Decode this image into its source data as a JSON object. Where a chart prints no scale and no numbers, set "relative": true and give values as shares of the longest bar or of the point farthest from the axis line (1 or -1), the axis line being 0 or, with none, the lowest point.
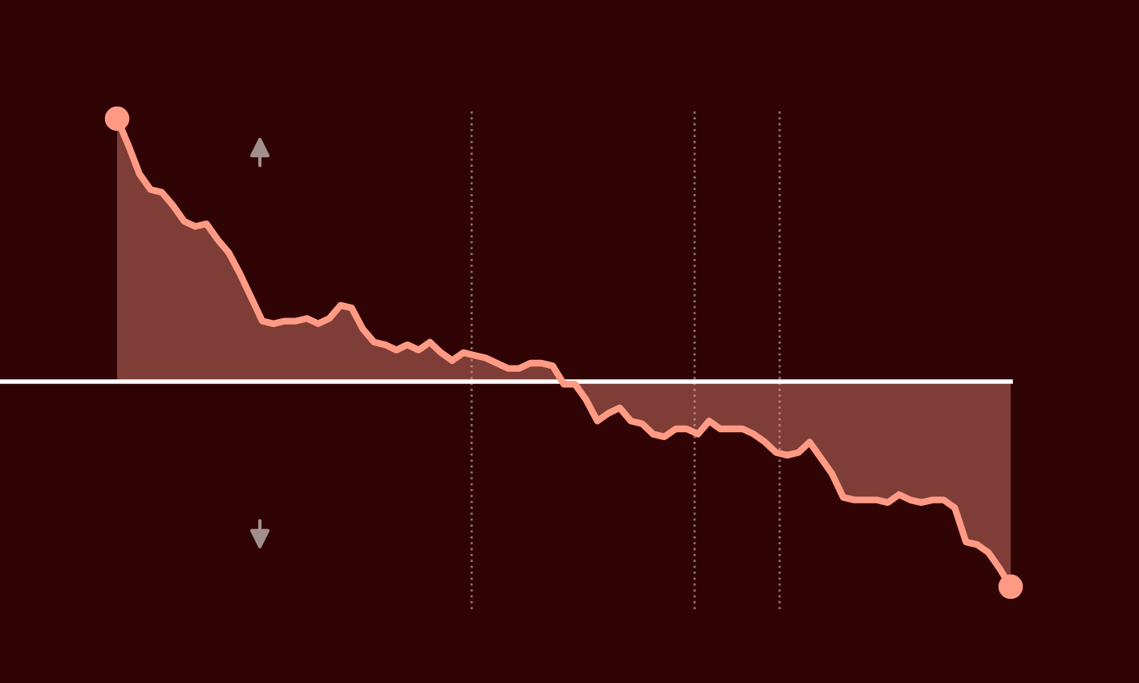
{
  "chart_data": {
    "type": "area",
    "relative": true,
    "grid": false,
    "legend": false,
    "line_style": "solid",
    "categories": [
      null,
      null,
      null,
      null,
      null,
      null,
      null,
      null,
      null,
      null,
      null,
      null,
      null,
      null,
      null,
      null,
      null,
      null,
      null,
      null,
      null,
      null,
      null,
      null,
      null,
      null,
      null,
      null,
      null,
      null,
      null,
      null,
      null,
      null,
      null,
      null,
      null,
      null,
      null,
      null,
      null,
      null,
      null,
      null,
      null,
      null,
      null,
      null,
      null,
      null,
      null,
      null,
      null,
      null,
      null,
      null,
      null,
      null,
      null,
      null,
      null,
      null,
      null,
      null,
      null,
      null,
      null,
      null,
      null,
      null,
      null,
      null,
      null,
      null,
      null,
      null,
      null,
      null,
      null,
      null,
      null
    ],
    "series": [
      {
        "color": "#ff9a85",
        "values": [
          1.0,
          0.9,
          0.79,
          0.73,
          0.72,
          0.67,
          0.61,
          0.59,
          0.6,
          0.54,
          0.49,
          0.41,
          0.32,
          0.23,
          0.22,
          0.23,
          0.23,
          0.24,
          0.22,
          0.24,
          0.29,
          0.28,
          0.2,
          0.15,
          0.14,
          0.12,
          0.14,
          0.12,
          0.15,
          0.11,
          0.08,
          0.11,
          0.1,
          0.09,
          0.07,
          0.05,
          0.05,
          0.07,
          0.07,
          0.06,
          -0.01,
          -0.01,
          -0.07,
          -0.15,
          -0.12,
          -0.1,
          -0.15,
          -0.16,
          -0.2,
          -0.21,
          -0.18,
          -0.18,
          -0.2,
          -0.15,
          -0.18,
          -0.18,
          -0.18,
          -0.2,
          -0.23,
          -0.27,
          -0.28,
          -0.27,
          -0.23,
          -0.29,
          -0.35,
          -0.44,
          -0.45,
          -0.45,
          -0.45,
          -0.46,
          -0.43,
          -0.45,
          -0.46,
          -0.45,
          -0.45,
          -0.48,
          -0.61,
          -0.62,
          -0.65,
          -0.71,
          -0.78
        ]
      }
    ]
  }
}
